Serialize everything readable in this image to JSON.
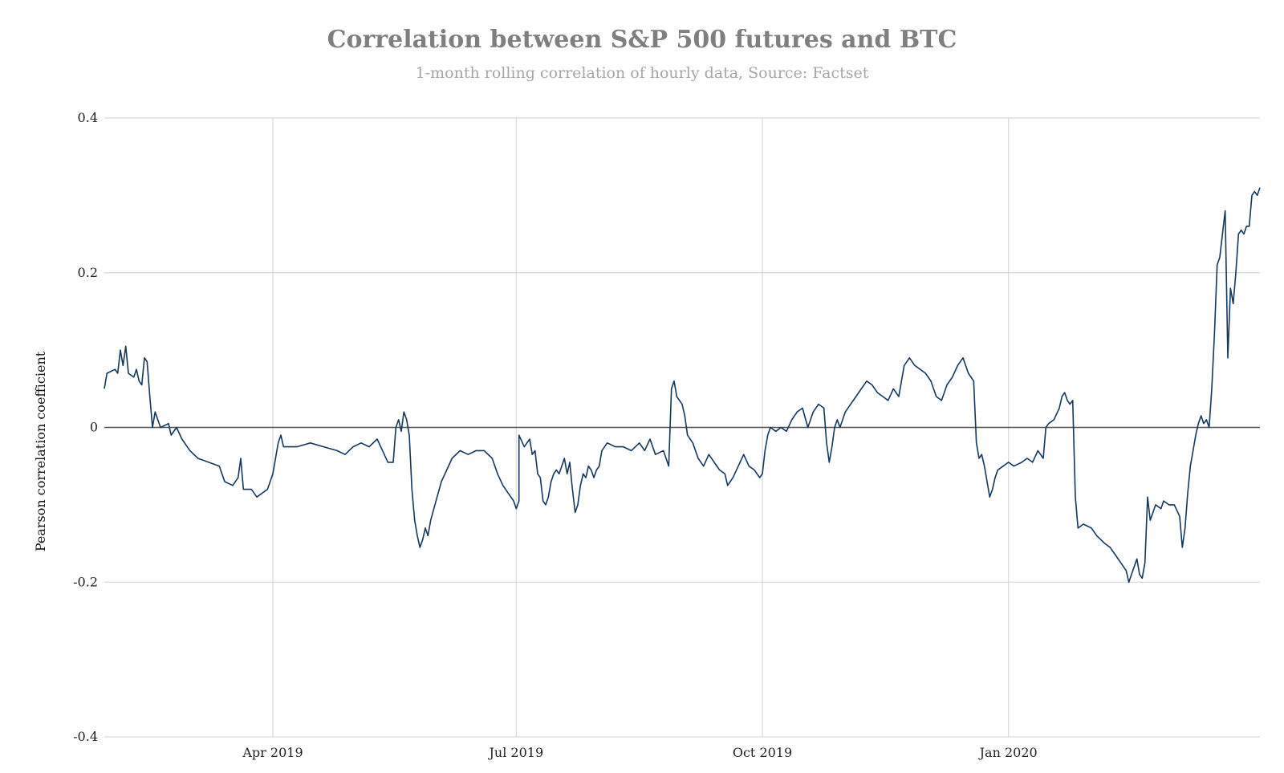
{
  "chart_data": {
    "type": "line",
    "title": "Correlation between S&P 500 futures and BTC",
    "subtitle": "1-month rolling correlation of hourly data, Source: Factset",
    "xlabel": "",
    "ylabel": "Pearson correlation coefficient",
    "ylim": [
      -0.4,
      0.4
    ],
    "yticks": [
      {
        "value": 0.4,
        "label": "0.4"
      },
      {
        "value": 0.2,
        "label": "0.2"
      },
      {
        "value": 0,
        "label": "0"
      },
      {
        "value": -0.2,
        "label": "-0.2"
      },
      {
        "value": -0.4,
        "label": "-0.4"
      }
    ],
    "xlim": [
      "2019-01-28",
      "2020-04-04"
    ],
    "xticks": [
      {
        "value": "2019-04-01",
        "label": "Apr 2019"
      },
      {
        "value": "2019-07-01",
        "label": "Jul 2019"
      },
      {
        "value": "2019-10-01",
        "label": "Oct 2019"
      },
      {
        "value": "2020-01-01",
        "label": "Jan 2020"
      }
    ],
    "grid": true,
    "zero_line": true,
    "line_color": "#14375e",
    "series": [
      {
        "points": [
          [
            "2019-01-28",
            0.05
          ],
          [
            "2019-01-29",
            0.07
          ],
          [
            "2019-02-01",
            0.075
          ],
          [
            "2019-02-02",
            0.07
          ],
          [
            "2019-02-03",
            0.1
          ],
          [
            "2019-02-04",
            0.08
          ],
          [
            "2019-02-05",
            0.105
          ],
          [
            "2019-02-06",
            0.07
          ],
          [
            "2019-02-08",
            0.065
          ],
          [
            "2019-02-09",
            0.075
          ],
          [
            "2019-02-10",
            0.06
          ],
          [
            "2019-02-11",
            0.055
          ],
          [
            "2019-02-12",
            0.09
          ],
          [
            "2019-02-13",
            0.085
          ],
          [
            "2019-02-14",
            0.04
          ],
          [
            "2019-02-15",
            0.0
          ],
          [
            "2019-02-16",
            0.02
          ],
          [
            "2019-02-18",
            0.0
          ],
          [
            "2019-02-21",
            0.005
          ],
          [
            "2019-02-22",
            -0.01
          ],
          [
            "2019-02-24",
            0.0
          ],
          [
            "2019-02-26",
            -0.015
          ],
          [
            "2019-03-01",
            -0.03
          ],
          [
            "2019-03-04",
            -0.04
          ],
          [
            "2019-03-08",
            -0.045
          ],
          [
            "2019-03-12",
            -0.05
          ],
          [
            "2019-03-14",
            -0.07
          ],
          [
            "2019-03-17",
            -0.075
          ],
          [
            "2019-03-19",
            -0.065
          ],
          [
            "2019-03-20",
            -0.04
          ],
          [
            "2019-03-21",
            -0.08
          ],
          [
            "2019-03-24",
            -0.08
          ],
          [
            "2019-03-26",
            -0.09
          ],
          [
            "2019-03-28",
            -0.085
          ],
          [
            "2019-03-30",
            -0.08
          ],
          [
            "2019-04-01",
            -0.06
          ],
          [
            "2019-04-03",
            -0.02
          ],
          [
            "2019-04-04",
            -0.01
          ],
          [
            "2019-04-05",
            -0.025
          ],
          [
            "2019-04-10",
            -0.025
          ],
          [
            "2019-04-15",
            -0.02
          ],
          [
            "2019-04-20",
            -0.025
          ],
          [
            "2019-04-25",
            -0.03
          ],
          [
            "2019-04-28",
            -0.035
          ],
          [
            "2019-05-01",
            -0.025
          ],
          [
            "2019-05-04",
            -0.02
          ],
          [
            "2019-05-07",
            -0.025
          ],
          [
            "2019-05-10",
            -0.015
          ],
          [
            "2019-05-12",
            -0.03
          ],
          [
            "2019-05-14",
            -0.045
          ],
          [
            "2019-05-16",
            -0.045
          ],
          [
            "2019-05-17",
            0.0
          ],
          [
            "2019-05-18",
            0.01
          ],
          [
            "2019-05-19",
            -0.005
          ],
          [
            "2019-05-20",
            0.02
          ],
          [
            "2019-05-21",
            0.01
          ],
          [
            "2019-05-22",
            -0.01
          ],
          [
            "2019-05-23",
            -0.08
          ],
          [
            "2019-05-24",
            -0.12
          ],
          [
            "2019-05-25",
            -0.14
          ],
          [
            "2019-05-26",
            -0.155
          ],
          [
            "2019-05-27",
            -0.145
          ],
          [
            "2019-05-28",
            -0.13
          ],
          [
            "2019-05-29",
            -0.14
          ],
          [
            "2019-05-30",
            -0.12
          ],
          [
            "2019-06-01",
            -0.095
          ],
          [
            "2019-06-03",
            -0.07
          ],
          [
            "2019-06-05",
            -0.055
          ],
          [
            "2019-06-07",
            -0.04
          ],
          [
            "2019-06-10",
            -0.03
          ],
          [
            "2019-06-13",
            -0.035
          ],
          [
            "2019-06-16",
            -0.03
          ],
          [
            "2019-06-19",
            -0.03
          ],
          [
            "2019-06-22",
            -0.04
          ],
          [
            "2019-06-24",
            -0.06
          ],
          [
            "2019-06-26",
            -0.075
          ],
          [
            "2019-06-28",
            -0.085
          ],
          [
            "2019-06-30",
            -0.095
          ],
          [
            "2019-07-01",
            -0.105
          ],
          [
            "2019-07-02",
            -0.095
          ],
          [
            "2019-07-02",
            -0.01
          ],
          [
            "2019-07-04",
            -0.025
          ],
          [
            "2019-07-06",
            -0.015
          ],
          [
            "2019-07-07",
            -0.035
          ],
          [
            "2019-07-08",
            -0.03
          ],
          [
            "2019-07-09",
            -0.06
          ],
          [
            "2019-07-10",
            -0.065
          ],
          [
            "2019-07-11",
            -0.095
          ],
          [
            "2019-07-12",
            -0.1
          ],
          [
            "2019-07-13",
            -0.09
          ],
          [
            "2019-07-14",
            -0.07
          ],
          [
            "2019-07-15",
            -0.06
          ],
          [
            "2019-07-16",
            -0.055
          ],
          [
            "2019-07-17",
            -0.06
          ],
          [
            "2019-07-18",
            -0.05
          ],
          [
            "2019-07-19",
            -0.04
          ],
          [
            "2019-07-20",
            -0.06
          ],
          [
            "2019-07-21",
            -0.045
          ],
          [
            "2019-07-22",
            -0.08
          ],
          [
            "2019-07-23",
            -0.11
          ],
          [
            "2019-07-24",
            -0.1
          ],
          [
            "2019-07-25",
            -0.075
          ],
          [
            "2019-07-26",
            -0.06
          ],
          [
            "2019-07-27",
            -0.065
          ],
          [
            "2019-07-28",
            -0.05
          ],
          [
            "2019-07-29",
            -0.055
          ],
          [
            "2019-07-30",
            -0.065
          ],
          [
            "2019-07-31",
            -0.055
          ],
          [
            "2019-08-01",
            -0.05
          ],
          [
            "2019-08-02",
            -0.03
          ],
          [
            "2019-08-04",
            -0.02
          ],
          [
            "2019-08-07",
            -0.025
          ],
          [
            "2019-08-10",
            -0.025
          ],
          [
            "2019-08-13",
            -0.03
          ],
          [
            "2019-08-16",
            -0.02
          ],
          [
            "2019-08-18",
            -0.03
          ],
          [
            "2019-08-20",
            -0.015
          ],
          [
            "2019-08-22",
            -0.035
          ],
          [
            "2019-08-25",
            -0.03
          ],
          [
            "2019-08-27",
            -0.05
          ],
          [
            "2019-08-28",
            0.05
          ],
          [
            "2019-08-29",
            0.06
          ],
          [
            "2019-08-30",
            0.04
          ],
          [
            "2019-09-01",
            0.03
          ],
          [
            "2019-09-02",
            0.015
          ],
          [
            "2019-09-03",
            -0.01
          ],
          [
            "2019-09-05",
            -0.02
          ],
          [
            "2019-09-07",
            -0.04
          ],
          [
            "2019-09-09",
            -0.05
          ],
          [
            "2019-09-11",
            -0.035
          ],
          [
            "2019-09-13",
            -0.045
          ],
          [
            "2019-09-15",
            -0.055
          ],
          [
            "2019-09-17",
            -0.06
          ],
          [
            "2019-09-18",
            -0.075
          ],
          [
            "2019-09-20",
            -0.065
          ],
          [
            "2019-09-22",
            -0.05
          ],
          [
            "2019-09-24",
            -0.035
          ],
          [
            "2019-09-26",
            -0.05
          ],
          [
            "2019-09-28",
            -0.055
          ],
          [
            "2019-09-30",
            -0.065
          ],
          [
            "2019-10-01",
            -0.06
          ],
          [
            "2019-10-02",
            -0.03
          ],
          [
            "2019-10-03",
            -0.01
          ],
          [
            "2019-10-04",
            0.0
          ],
          [
            "2019-10-06",
            -0.005
          ],
          [
            "2019-10-08",
            0.0
          ],
          [
            "2019-10-10",
            -0.005
          ],
          [
            "2019-10-12",
            0.01
          ],
          [
            "2019-10-14",
            0.02
          ],
          [
            "2019-10-16",
            0.025
          ],
          [
            "2019-10-18",
            0.0
          ],
          [
            "2019-10-20",
            0.02
          ],
          [
            "2019-10-22",
            0.03
          ],
          [
            "2019-10-24",
            0.025
          ],
          [
            "2019-10-25",
            -0.02
          ],
          [
            "2019-10-26",
            -0.045
          ],
          [
            "2019-10-27",
            -0.025
          ],
          [
            "2019-10-28",
            0.0
          ],
          [
            "2019-10-29",
            0.01
          ],
          [
            "2019-10-30",
            0.0
          ],
          [
            "2019-11-01",
            0.02
          ],
          [
            "2019-11-03",
            0.03
          ],
          [
            "2019-11-05",
            0.04
          ],
          [
            "2019-11-07",
            0.05
          ],
          [
            "2019-11-09",
            0.06
          ],
          [
            "2019-11-11",
            0.055
          ],
          [
            "2019-11-13",
            0.045
          ],
          [
            "2019-11-15",
            0.04
          ],
          [
            "2019-11-17",
            0.035
          ],
          [
            "2019-11-19",
            0.05
          ],
          [
            "2019-11-21",
            0.04
          ],
          [
            "2019-11-23",
            0.08
          ],
          [
            "2019-11-25",
            0.09
          ],
          [
            "2019-11-27",
            0.08
          ],
          [
            "2019-11-29",
            0.075
          ],
          [
            "2019-12-01",
            0.07
          ],
          [
            "2019-12-03",
            0.06
          ],
          [
            "2019-12-05",
            0.04
          ],
          [
            "2019-12-07",
            0.035
          ],
          [
            "2019-12-09",
            0.055
          ],
          [
            "2019-12-11",
            0.065
          ],
          [
            "2019-12-13",
            0.08
          ],
          [
            "2019-12-15",
            0.09
          ],
          [
            "2019-12-17",
            0.07
          ],
          [
            "2019-12-19",
            0.06
          ],
          [
            "2019-12-20",
            -0.02
          ],
          [
            "2019-12-21",
            -0.04
          ],
          [
            "2019-12-22",
            -0.035
          ],
          [
            "2019-12-23",
            -0.05
          ],
          [
            "2019-12-24",
            -0.07
          ],
          [
            "2019-12-25",
            -0.09
          ],
          [
            "2019-12-26",
            -0.08
          ],
          [
            "2019-12-27",
            -0.065
          ],
          [
            "2019-12-28",
            -0.055
          ],
          [
            "2019-12-30",
            -0.05
          ],
          [
            "2020-01-01",
            -0.045
          ],
          [
            "2020-01-03",
            -0.05
          ],
          [
            "2020-01-06",
            -0.045
          ],
          [
            "2020-01-08",
            -0.04
          ],
          [
            "2020-01-10",
            -0.045
          ],
          [
            "2020-01-12",
            -0.03
          ],
          [
            "2020-01-14",
            -0.04
          ],
          [
            "2020-01-15",
            0.0
          ],
          [
            "2020-01-16",
            0.005
          ],
          [
            "2020-01-18",
            0.01
          ],
          [
            "2020-01-20",
            0.025
          ],
          [
            "2020-01-21",
            0.04
          ],
          [
            "2020-01-22",
            0.045
          ],
          [
            "2020-01-23",
            0.035
          ],
          [
            "2020-01-24",
            0.03
          ],
          [
            "2020-01-25",
            0.035
          ],
          [
            "2020-01-26",
            -0.09
          ],
          [
            "2020-01-27",
            -0.13
          ],
          [
            "2020-01-29",
            -0.125
          ],
          [
            "2020-02-01",
            -0.13
          ],
          [
            "2020-02-03",
            -0.14
          ],
          [
            "2020-02-06",
            -0.15
          ],
          [
            "2020-02-08",
            -0.155
          ],
          [
            "2020-02-10",
            -0.165
          ],
          [
            "2020-02-12",
            -0.175
          ],
          [
            "2020-02-14",
            -0.185
          ],
          [
            "2020-02-15",
            -0.2
          ],
          [
            "2020-02-16",
            -0.19
          ],
          [
            "2020-02-17",
            -0.18
          ],
          [
            "2020-02-18",
            -0.17
          ],
          [
            "2020-02-19",
            -0.19
          ],
          [
            "2020-02-20",
            -0.195
          ],
          [
            "2020-02-21",
            -0.175
          ],
          [
            "2020-02-22",
            -0.09
          ],
          [
            "2020-02-23",
            -0.12
          ],
          [
            "2020-02-24",
            -0.11
          ],
          [
            "2020-02-25",
            -0.1
          ],
          [
            "2020-02-27",
            -0.105
          ],
          [
            "2020-02-28",
            -0.095
          ],
          [
            "2020-03-01",
            -0.1
          ],
          [
            "2020-03-03",
            -0.1
          ],
          [
            "2020-03-05",
            -0.115
          ],
          [
            "2020-03-06",
            -0.155
          ],
          [
            "2020-03-07",
            -0.13
          ],
          [
            "2020-03-08",
            -0.085
          ],
          [
            "2020-03-09",
            -0.05
          ],
          [
            "2020-03-10",
            -0.03
          ],
          [
            "2020-03-11",
            -0.01
          ],
          [
            "2020-03-12",
            0.005
          ],
          [
            "2020-03-13",
            0.015
          ],
          [
            "2020-03-14",
            0.005
          ],
          [
            "2020-03-15",
            0.01
          ],
          [
            "2020-03-16",
            0.0
          ],
          [
            "2020-03-17",
            0.05
          ],
          [
            "2020-03-18",
            0.12
          ],
          [
            "2020-03-19",
            0.21
          ],
          [
            "2020-03-20",
            0.22
          ],
          [
            "2020-03-21",
            0.25
          ],
          [
            "2020-03-22",
            0.28
          ],
          [
            "2020-03-23",
            0.09
          ],
          [
            "2020-03-24",
            0.18
          ],
          [
            "2020-03-25",
            0.16
          ],
          [
            "2020-03-26",
            0.2
          ],
          [
            "2020-03-27",
            0.25
          ],
          [
            "2020-03-28",
            0.255
          ],
          [
            "2020-03-29",
            0.25
          ],
          [
            "2020-03-30",
            0.26
          ],
          [
            "2020-03-31",
            0.26
          ],
          [
            "2020-04-01",
            0.3
          ],
          [
            "2020-04-02",
            0.305
          ],
          [
            "2020-04-03",
            0.3
          ],
          [
            "2020-04-04",
            0.31
          ]
        ]
      }
    ]
  }
}
